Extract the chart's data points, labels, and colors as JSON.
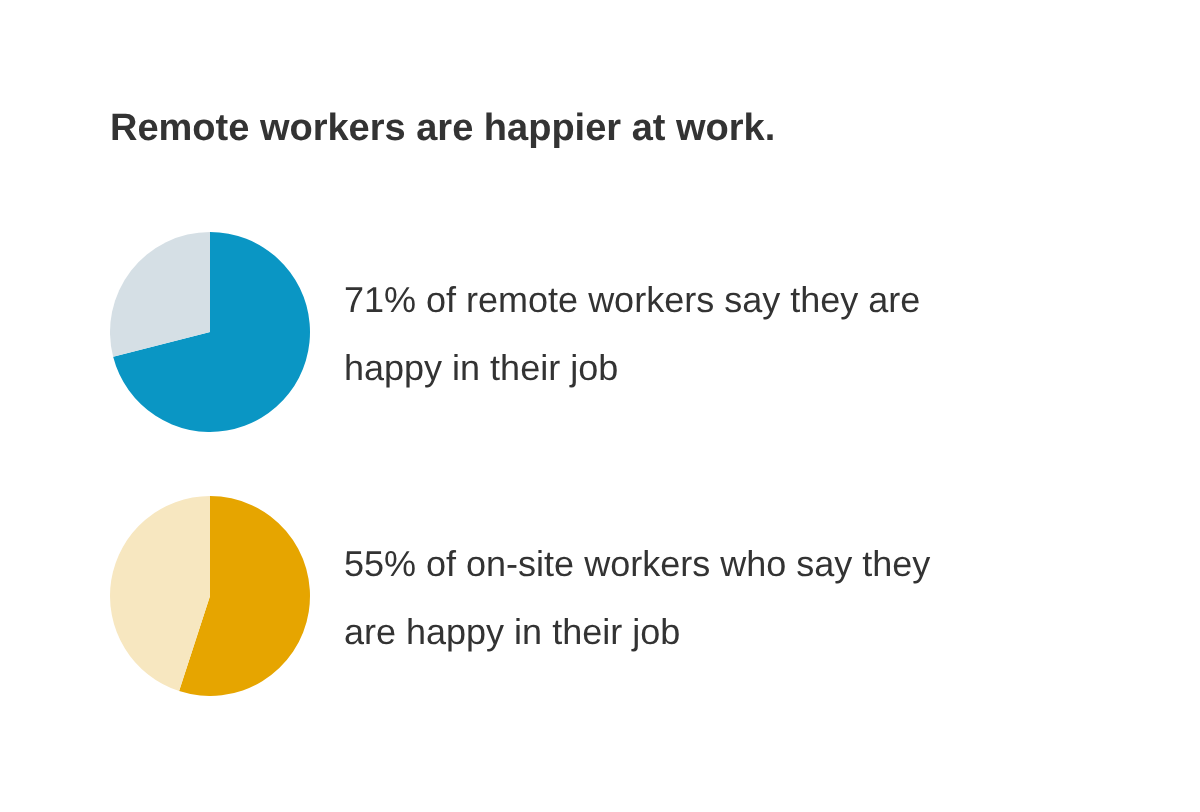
{
  "chart_data": [
    {
      "type": "pie",
      "title": "Remote workers are happier at work.",
      "categories": [
        null,
        null
      ],
      "values": [
        71,
        29
      ],
      "colors": [
        "#0a96c4",
        "#d5dfe5"
      ],
      "legend": false,
      "annotations": [
        "71% of remote workers say they are happy in their job"
      ]
    },
    {
      "type": "pie",
      "categories": [
        null,
        null
      ],
      "values": [
        55,
        45
      ],
      "colors": [
        "#e6a500",
        "#f7e7c0"
      ],
      "legend": false,
      "annotations": [
        "55% of on-site workers who say they are happy in their job"
      ]
    }
  ]
}
